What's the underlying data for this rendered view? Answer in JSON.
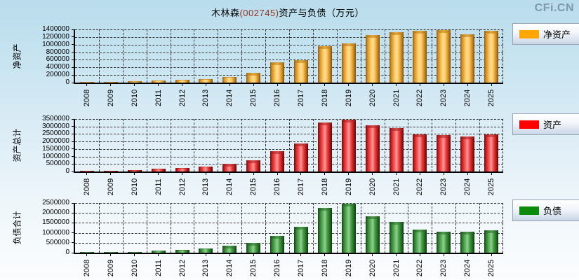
{
  "header": {
    "title_company": "木林森",
    "title_code": "(002745)",
    "title_suffix": "资产与负债（万元）",
    "watermark": "CFi.CN"
  },
  "chart_data": [
    {
      "type": "bar",
      "id": "net-assets",
      "ylabel": "净资产",
      "legend": "净资产",
      "legend_position": "right-outside",
      "grid": true,
      "color_class": "orange",
      "swatch": "#FFA600",
      "ylim": [
        0,
        1400000
      ],
      "yticks": [
        0,
        200000,
        400000,
        600000,
        800000,
        1000000,
        1200000,
        1400000
      ],
      "categories": [
        "2008",
        "2009",
        "2010",
        "2011",
        "2012",
        "2013",
        "2014",
        "2015",
        "2016",
        "2017",
        "2018",
        "2019",
        "2020",
        "2021",
        "2022",
        "2023",
        "2024",
        "2025"
      ],
      "values": [
        15000,
        18000,
        38000,
        56000,
        70000,
        100000,
        140000,
        250000,
        535000,
        595000,
        960000,
        1030000,
        1260000,
        1335000,
        1360000,
        1390000,
        1280000,
        1355000
      ]
    },
    {
      "type": "bar",
      "id": "total-assets",
      "ylabel": "资产总计",
      "legend": "资产",
      "legend_position": "right-outside",
      "grid": true,
      "color_class": "red",
      "swatch": "#FF0000",
      "ylim": [
        0,
        3500000
      ],
      "yticks": [
        0,
        500000,
        1000000,
        1500000,
        2000000,
        2500000,
        3000000,
        3500000
      ],
      "categories": [
        "2008",
        "2009",
        "2010",
        "2011",
        "2012",
        "2013",
        "2014",
        "2015",
        "2016",
        "2017",
        "2018",
        "2019",
        "2020",
        "2021",
        "2022",
        "2023",
        "2024",
        "2025"
      ],
      "values": [
        45000,
        48000,
        110000,
        170000,
        235000,
        310000,
        500000,
        735000,
        1375000,
        1860000,
        3250000,
        3470000,
        3080000,
        2905000,
        2470000,
        2440000,
        2345000,
        2470000
      ]
    },
    {
      "type": "bar",
      "id": "total-liabilities",
      "ylabel": "负债合计",
      "legend": "负债",
      "legend_position": "right-outside",
      "grid": true,
      "color_class": "green",
      "swatch": "#0B8A0B",
      "ylim": [
        0,
        2500000
      ],
      "yticks": [
        0,
        500000,
        1000000,
        1500000,
        2000000,
        2500000
      ],
      "categories": [
        "2008",
        "2009",
        "2010",
        "2011",
        "2012",
        "2013",
        "2014",
        "2015",
        "2016",
        "2017",
        "2018",
        "2019",
        "2020",
        "2021",
        "2022",
        "2023",
        "2024",
        "2025"
      ],
      "values": [
        30000,
        30000,
        40000,
        110000,
        150000,
        210000,
        350000,
        490000,
        850000,
        1290000,
        2245000,
        2480000,
        1840000,
        1560000,
        1170000,
        1060000,
        1070000,
        1130000
      ]
    }
  ]
}
